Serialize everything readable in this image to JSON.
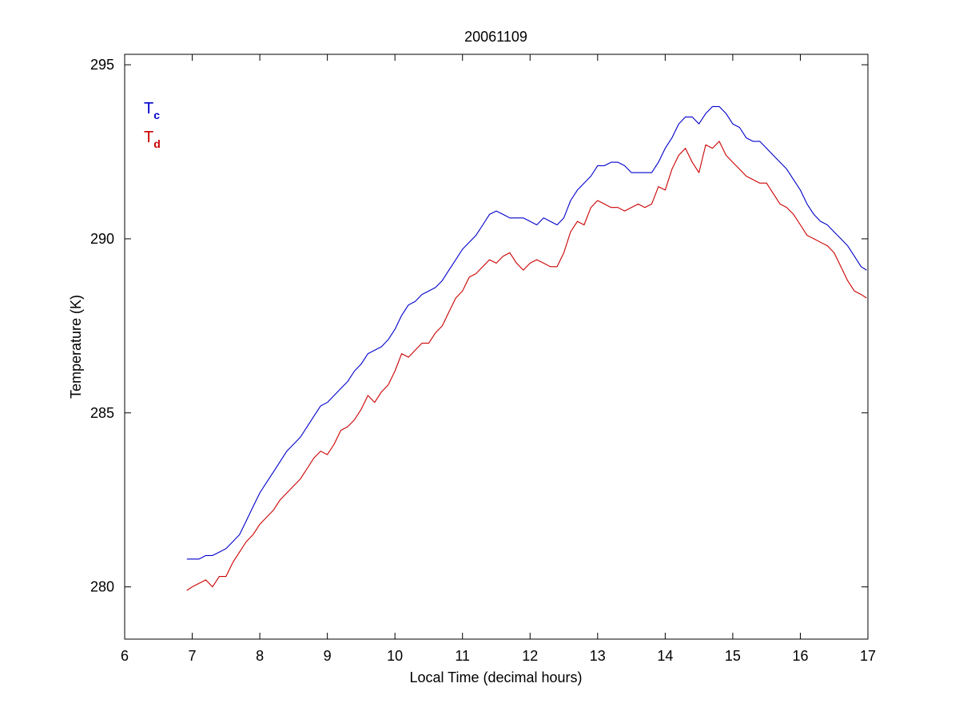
{
  "chart_data": {
    "type": "line",
    "title": "20061109",
    "xlabel": "Local Time (decimal hours)",
    "ylabel": "Temperature (K)",
    "xlim": [
      6,
      17
    ],
    "ylim": [
      278.5,
      295.3
    ],
    "xticks": [
      6,
      7,
      8,
      9,
      10,
      11,
      12,
      13,
      14,
      15,
      16,
      17
    ],
    "yticks": [
      280,
      285,
      290,
      295
    ],
    "grid": false,
    "legend_position": "top-left",
    "legend": [
      {
        "base": "T",
        "sub": "c",
        "color": "#0000cc"
      },
      {
        "base": "T",
        "sub": "d",
        "color": "#cc0000"
      }
    ],
    "series": [
      {
        "color": "#0000cc",
        "x": [
          6.92,
          7.0,
          7.1,
          7.2,
          7.3,
          7.4,
          7.5,
          7.6,
          7.7,
          7.8,
          7.9,
          8.0,
          8.1,
          8.2,
          8.3,
          8.4,
          8.5,
          8.6,
          8.7,
          8.8,
          8.9,
          9.0,
          9.1,
          9.2,
          9.3,
          9.4,
          9.5,
          9.6,
          9.7,
          9.8,
          9.9,
          10.0,
          10.1,
          10.2,
          10.3,
          10.4,
          10.5,
          10.6,
          10.7,
          10.8,
          10.9,
          11.0,
          11.1,
          11.2,
          11.3,
          11.4,
          11.5,
          11.6,
          11.7,
          11.8,
          11.9,
          12.0,
          12.1,
          12.2,
          12.3,
          12.4,
          12.5,
          12.6,
          12.7,
          12.8,
          12.9,
          13.0,
          13.1,
          13.2,
          13.3,
          13.4,
          13.5,
          13.6,
          13.7,
          13.8,
          13.9,
          14.0,
          14.1,
          14.2,
          14.3,
          14.4,
          14.5,
          14.6,
          14.7,
          14.8,
          14.9,
          15.0,
          15.1,
          15.2,
          15.3,
          15.4,
          15.5,
          15.6,
          15.7,
          15.8,
          15.9,
          16.0,
          16.1,
          16.2,
          16.3,
          16.4,
          16.5,
          16.6,
          16.7,
          16.8,
          16.9,
          16.98
        ],
        "y": [
          280.8,
          280.8,
          280.8,
          280.9,
          280.9,
          281.0,
          281.1,
          281.3,
          281.5,
          281.9,
          282.3,
          282.7,
          283.0,
          283.3,
          283.6,
          283.9,
          284.1,
          284.3,
          284.6,
          284.9,
          285.2,
          285.3,
          285.5,
          285.7,
          285.9,
          286.2,
          286.4,
          286.7,
          286.8,
          286.9,
          287.1,
          287.4,
          287.8,
          288.1,
          288.2,
          288.4,
          288.5,
          288.6,
          288.8,
          289.1,
          289.4,
          289.7,
          289.9,
          290.1,
          290.4,
          290.7,
          290.8,
          290.7,
          290.6,
          290.6,
          290.6,
          290.5,
          290.4,
          290.6,
          290.5,
          290.4,
          290.6,
          291.1,
          291.4,
          291.6,
          291.8,
          292.1,
          292.1,
          292.2,
          292.2,
          292.1,
          291.9,
          291.9,
          291.9,
          291.9,
          292.2,
          292.6,
          292.9,
          293.3,
          293.5,
          293.5,
          293.3,
          293.6,
          293.8,
          293.8,
          293.6,
          293.3,
          293.2,
          292.9,
          292.8,
          292.8,
          292.6,
          292.4,
          292.2,
          292.0,
          291.7,
          291.4,
          291.0,
          290.7,
          290.5,
          290.4,
          290.2,
          290.0,
          289.8,
          289.5,
          289.2,
          289.1
        ]
      },
      {
        "color": "#cc0000",
        "x": [
          6.92,
          7.0,
          7.1,
          7.2,
          7.3,
          7.4,
          7.5,
          7.6,
          7.7,
          7.8,
          7.9,
          8.0,
          8.1,
          8.2,
          8.3,
          8.4,
          8.5,
          8.6,
          8.7,
          8.8,
          8.9,
          9.0,
          9.1,
          9.2,
          9.3,
          9.4,
          9.5,
          9.6,
          9.7,
          9.8,
          9.9,
          10.0,
          10.1,
          10.2,
          10.3,
          10.4,
          10.5,
          10.6,
          10.7,
          10.8,
          10.9,
          11.0,
          11.1,
          11.2,
          11.3,
          11.4,
          11.5,
          11.6,
          11.7,
          11.8,
          11.9,
          12.0,
          12.1,
          12.2,
          12.3,
          12.4,
          12.5,
          12.6,
          12.7,
          12.8,
          12.9,
          13.0,
          13.1,
          13.2,
          13.3,
          13.4,
          13.5,
          13.6,
          13.7,
          13.8,
          13.9,
          14.0,
          14.1,
          14.2,
          14.3,
          14.4,
          14.5,
          14.6,
          14.7,
          14.8,
          14.9,
          15.0,
          15.1,
          15.2,
          15.3,
          15.4,
          15.5,
          15.6,
          15.7,
          15.8,
          15.9,
          16.0,
          16.1,
          16.2,
          16.3,
          16.4,
          16.5,
          16.6,
          16.7,
          16.8,
          16.9,
          16.98
        ],
        "y": [
          279.9,
          280.0,
          280.1,
          280.2,
          280.0,
          280.3,
          280.3,
          280.7,
          281.0,
          281.3,
          281.5,
          281.8,
          282.0,
          282.2,
          282.5,
          282.7,
          282.9,
          283.1,
          283.4,
          283.7,
          283.9,
          283.8,
          284.1,
          284.5,
          284.6,
          284.8,
          285.1,
          285.5,
          285.3,
          285.6,
          285.8,
          286.2,
          286.7,
          286.6,
          286.8,
          287.0,
          287.0,
          287.3,
          287.5,
          287.9,
          288.3,
          288.5,
          288.9,
          289.0,
          289.2,
          289.4,
          289.3,
          289.5,
          289.6,
          289.3,
          289.1,
          289.3,
          289.4,
          289.3,
          289.2,
          289.2,
          289.6,
          290.2,
          290.5,
          290.4,
          290.9,
          291.1,
          291.0,
          290.9,
          290.9,
          290.8,
          290.9,
          291.0,
          290.9,
          291.0,
          291.5,
          291.4,
          292.0,
          292.4,
          292.6,
          292.2,
          291.9,
          292.7,
          292.6,
          292.8,
          292.4,
          292.2,
          292.0,
          291.8,
          291.7,
          291.6,
          291.6,
          291.3,
          291.0,
          290.9,
          290.7,
          290.4,
          290.1,
          290.0,
          289.9,
          289.8,
          289.6,
          289.2,
          288.8,
          288.5,
          288.4,
          288.3
        ]
      }
    ]
  }
}
